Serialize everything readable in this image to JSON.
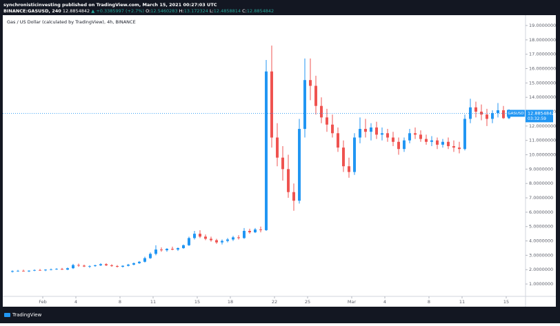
{
  "header": {
    "publisher": "synchronisticinvesting published on TradingView.com, March 15, 2021 00:27:03 UTC",
    "symbol": "BINANCE:GASUSD, 240",
    "last": 12.8854842,
    "change": "▲ +0.3385997 (+2.7%)",
    "o_label": "O:",
    "o": 12.5460283,
    "h_label": "H:",
    "h": 13.172324,
    "l_label": "L:",
    "l": 12.4858814,
    "c_label": "C:",
    "c": 12.8854842
  },
  "footer": {
    "brand": "TradingView"
  },
  "chart_data": {
    "type": "candlestick",
    "title": "Gas / US Dollar (calculated by TradingView), 4h, BINANCE",
    "up_color": "#2196f3",
    "down_color": "#ef5350",
    "grid": false,
    "categories": [
      null,
      null,
      null,
      null,
      null,
      null,
      "Feb",
      null,
      null,
      null,
      null,
      null,
      "4",
      null,
      null,
      null,
      null,
      null,
      null,
      null,
      "8",
      null,
      null,
      null,
      null,
      null,
      "11",
      null,
      null,
      null,
      null,
      null,
      null,
      null,
      "15",
      null,
      null,
      null,
      null,
      null,
      "18",
      null,
      null,
      null,
      null,
      null,
      null,
      null,
      "22",
      null,
      null,
      null,
      null,
      null,
      "25",
      null,
      null,
      null,
      null,
      null,
      null,
      null,
      "Mar",
      null,
      null,
      null,
      null,
      null,
      "4",
      null,
      null,
      null,
      null,
      null,
      null,
      null,
      "8",
      null,
      null,
      null,
      null,
      null,
      "11",
      null,
      null,
      null,
      null,
      null,
      null,
      null,
      "15"
    ],
    "open": [
      1.85,
      1.9,
      1.92,
      1.88,
      1.93,
      1.97,
      1.95,
      2.0,
      2.02,
      2.05,
      2.0,
      2.1,
      2.32,
      2.28,
      2.22,
      2.25,
      2.3,
      2.38,
      2.3,
      2.25,
      2.2,
      2.27,
      2.35,
      2.45,
      2.55,
      2.8,
      3.1,
      3.4,
      3.35,
      3.45,
      3.4,
      3.5,
      3.7,
      4.2,
      4.5,
      4.3,
      4.15,
      4.05,
      3.9,
      4.0,
      4.1,
      4.25,
      4.2,
      4.7,
      4.6,
      4.8,
      4.75,
      15.8,
      11.2,
      9.8,
      9.0,
      7.4,
      6.8,
      11.8,
      15.2,
      14.8,
      13.4,
      12.6,
      12.1,
      11.5,
      10.5,
      9.2,
      8.8,
      11.2,
      11.8,
      11.6,
      11.9,
      11.4,
      11.5,
      11.2,
      10.9,
      10.4,
      11.0,
      11.5,
      11.4,
      11.1,
      10.9,
      11.0,
      10.7,
      10.9,
      10.6,
      10.5,
      10.4,
      12.5,
      13.3,
      13.0,
      12.8,
      12.5,
      12.9,
      13.1,
      12.5460283
    ],
    "high": [
      1.95,
      1.98,
      2.0,
      1.95,
      2.02,
      2.05,
      2.03,
      2.08,
      2.1,
      2.12,
      2.15,
      2.4,
      2.42,
      2.35,
      2.3,
      2.35,
      2.45,
      2.45,
      2.38,
      2.32,
      2.3,
      2.4,
      2.5,
      2.6,
      2.9,
      3.2,
      3.7,
      3.55,
      3.5,
      3.6,
      3.55,
      3.75,
      4.3,
      4.7,
      4.75,
      4.45,
      4.3,
      4.15,
      4.1,
      4.2,
      4.35,
      4.4,
      4.9,
      4.85,
      4.9,
      5.0,
      16.6,
      17.6,
      12.2,
      10.6,
      10.0,
      8.0,
      12.5,
      16.7,
      16.7,
      15.5,
      14.0,
      13.2,
      12.8,
      11.9,
      11.0,
      9.8,
      11.5,
      12.6,
      12.5,
      12.2,
      12.3,
      11.9,
      11.8,
      11.6,
      11.2,
      11.2,
      11.8,
      11.9,
      11.7,
      11.4,
      11.3,
      11.2,
      11.1,
      11.2,
      11.0,
      10.9,
      12.8,
      13.9,
      13.7,
      13.5,
      13.2,
      13.1,
      13.6,
      13.4,
      13.172324
    ],
    "low": [
      1.8,
      1.85,
      1.86,
      1.84,
      1.9,
      1.92,
      1.9,
      1.95,
      1.98,
      1.99,
      1.97,
      2.05,
      2.2,
      2.18,
      2.12,
      2.2,
      2.25,
      2.25,
      2.2,
      2.15,
      2.15,
      2.22,
      2.3,
      2.4,
      2.5,
      2.75,
      3.0,
      3.25,
      3.25,
      3.35,
      3.3,
      3.45,
      3.65,
      4.1,
      4.2,
      4.05,
      3.95,
      3.8,
      3.75,
      3.9,
      4.0,
      4.1,
      4.15,
      4.5,
      4.55,
      4.6,
      4.7,
      10.5,
      9.2,
      8.2,
      7.0,
      6.1,
      6.6,
      11.2,
      13.8,
      12.8,
      12.2,
      11.6,
      11.2,
      10.2,
      8.8,
      8.4,
      8.6,
      10.8,
      11.2,
      11.0,
      11.1,
      11.0,
      10.9,
      10.6,
      10.0,
      10.2,
      10.8,
      11.1,
      10.9,
      10.7,
      10.6,
      10.4,
      10.5,
      10.4,
      10.2,
      10.1,
      10.3,
      12.2,
      12.6,
      12.4,
      12.0,
      12.2,
      12.6,
      12.5,
      12.4858814
    ],
    "close": [
      1.9,
      1.92,
      1.88,
      1.93,
      1.97,
      1.95,
      2.0,
      2.02,
      2.05,
      2.0,
      2.1,
      2.32,
      2.28,
      2.22,
      2.25,
      2.3,
      2.38,
      2.3,
      2.25,
      2.2,
      2.27,
      2.35,
      2.45,
      2.55,
      2.8,
      3.1,
      3.4,
      3.35,
      3.45,
      3.4,
      3.5,
      3.7,
      4.2,
      4.5,
      4.3,
      4.15,
      4.05,
      3.9,
      4.0,
      4.1,
      4.25,
      4.2,
      4.7,
      4.6,
      4.8,
      4.75,
      15.8,
      11.2,
      9.8,
      9.0,
      7.4,
      6.8,
      11.8,
      15.2,
      14.8,
      13.4,
      12.6,
      12.1,
      11.5,
      10.5,
      9.2,
      8.8,
      11.2,
      11.8,
      11.6,
      11.9,
      11.4,
      11.5,
      11.2,
      10.9,
      10.4,
      11.0,
      11.5,
      11.4,
      11.1,
      10.9,
      11.0,
      10.7,
      10.9,
      10.6,
      10.5,
      10.4,
      12.5,
      13.3,
      13.0,
      12.8,
      12.5,
      12.9,
      13.1,
      12.55,
      12.8854842
    ],
    "ylim": [
      0.14,
      19.72
    ],
    "yticks": [
      {
        "value": 1,
        "label": "1.0000000"
      },
      {
        "value": 2,
        "label": "2.0000000"
      },
      {
        "value": 3,
        "label": "3.0000000"
      },
      {
        "value": 4,
        "label": "4.0000000"
      },
      {
        "value": 5,
        "label": "5.0000000"
      },
      {
        "value": 6,
        "label": "6.0000000"
      },
      {
        "value": 7,
        "label": "7.0000000"
      },
      {
        "value": 8,
        "label": "8.0000000"
      },
      {
        "value": 9,
        "label": "9.0000000"
      },
      {
        "value": 10,
        "label": "10.0000000"
      },
      {
        "value": 11,
        "label": "11.0000000"
      },
      {
        "value": 12,
        "label": "12.0000000"
      },
      {
        "value": 13,
        "label": "13.0000000"
      },
      {
        "value": 14,
        "label": "14.0000000"
      },
      {
        "value": 15,
        "label": "15.0000000"
      },
      {
        "value": 16,
        "label": "16.0000000"
      },
      {
        "value": 17,
        "label": "17.0000000"
      },
      {
        "value": 18,
        "label": "18.0000000"
      },
      {
        "value": 19,
        "label": "19.0000000"
      }
    ],
    "last_price": {
      "symbol": "GASUSD",
      "value": 12.8854842,
      "countdown": "03:32:59",
      "color": "#2196f3"
    }
  }
}
